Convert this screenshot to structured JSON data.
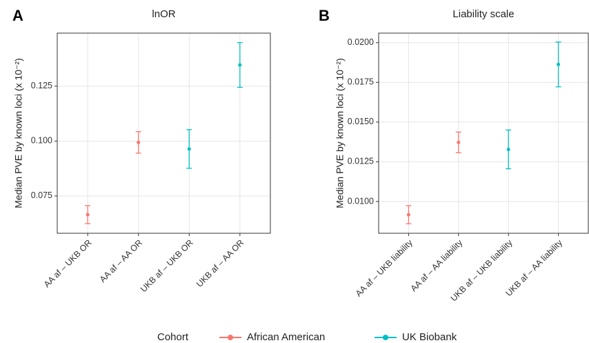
{
  "chart_data": [
    {
      "type": "errorbar",
      "panel_label": "A",
      "title": "lnOR",
      "y_label": "Median PVE by known loci (x 10⁻²)",
      "categories": [
        "AA af – UKB OR",
        "AA af – AA OR",
        "UKB af – UKB OR",
        "UKB af – AA OR"
      ],
      "series": [
        {
          "name": "African American",
          "color": "#f8766d",
          "values": [
            0.0665,
            0.0994,
            null,
            null
          ],
          "errors": [
            0.0041,
            0.0049,
            null,
            null
          ]
        },
        {
          "name": "UK Biobank",
          "color": "#00bfc4",
          "values": [
            null,
            null,
            0.0964,
            0.1347
          ],
          "errors": [
            null,
            null,
            0.0088,
            0.0102
          ]
        }
      ],
      "ylim": [
        0.058,
        0.1492
      ],
      "yticks": [
        0.075,
        {
          "value": 0.1,
          "label": "0.100"
        },
        0.125
      ],
      "grid": true,
      "legend_title": "Cohort"
    },
    {
      "type": "errorbar",
      "panel_label": "B",
      "title": "Liability scale",
      "y_label": "Median PVE by known loci (x 10⁻²)",
      "categories": [
        "AA af – UKB liability",
        "AA af – AA liability",
        "UKB af – UKB liability",
        "UKB af – AA liability"
      ],
      "series": [
        {
          "name": "African American",
          "color": "#f8766d",
          "values": [
            0.00917,
            0.01372,
            null,
            null
          ],
          "errors": [
            0.00057,
            0.00065,
            null,
            null
          ]
        },
        {
          "name": "UK Biobank",
          "color": "#00bfc4",
          "values": [
            null,
            null,
            0.01328,
            0.01863
          ],
          "errors": [
            null,
            null,
            0.00122,
            0.00141
          ]
        }
      ],
      "ylim": [
        0.008,
        0.0206
      ],
      "yticks": [
        {
          "value": 0.01,
          "label": "0.0100"
        },
        0.0125,
        {
          "value": 0.015,
          "label": "0.0150"
        },
        0.0175,
        {
          "value": 0.02,
          "label": "0.0200"
        }
      ],
      "grid": true
    }
  ]
}
